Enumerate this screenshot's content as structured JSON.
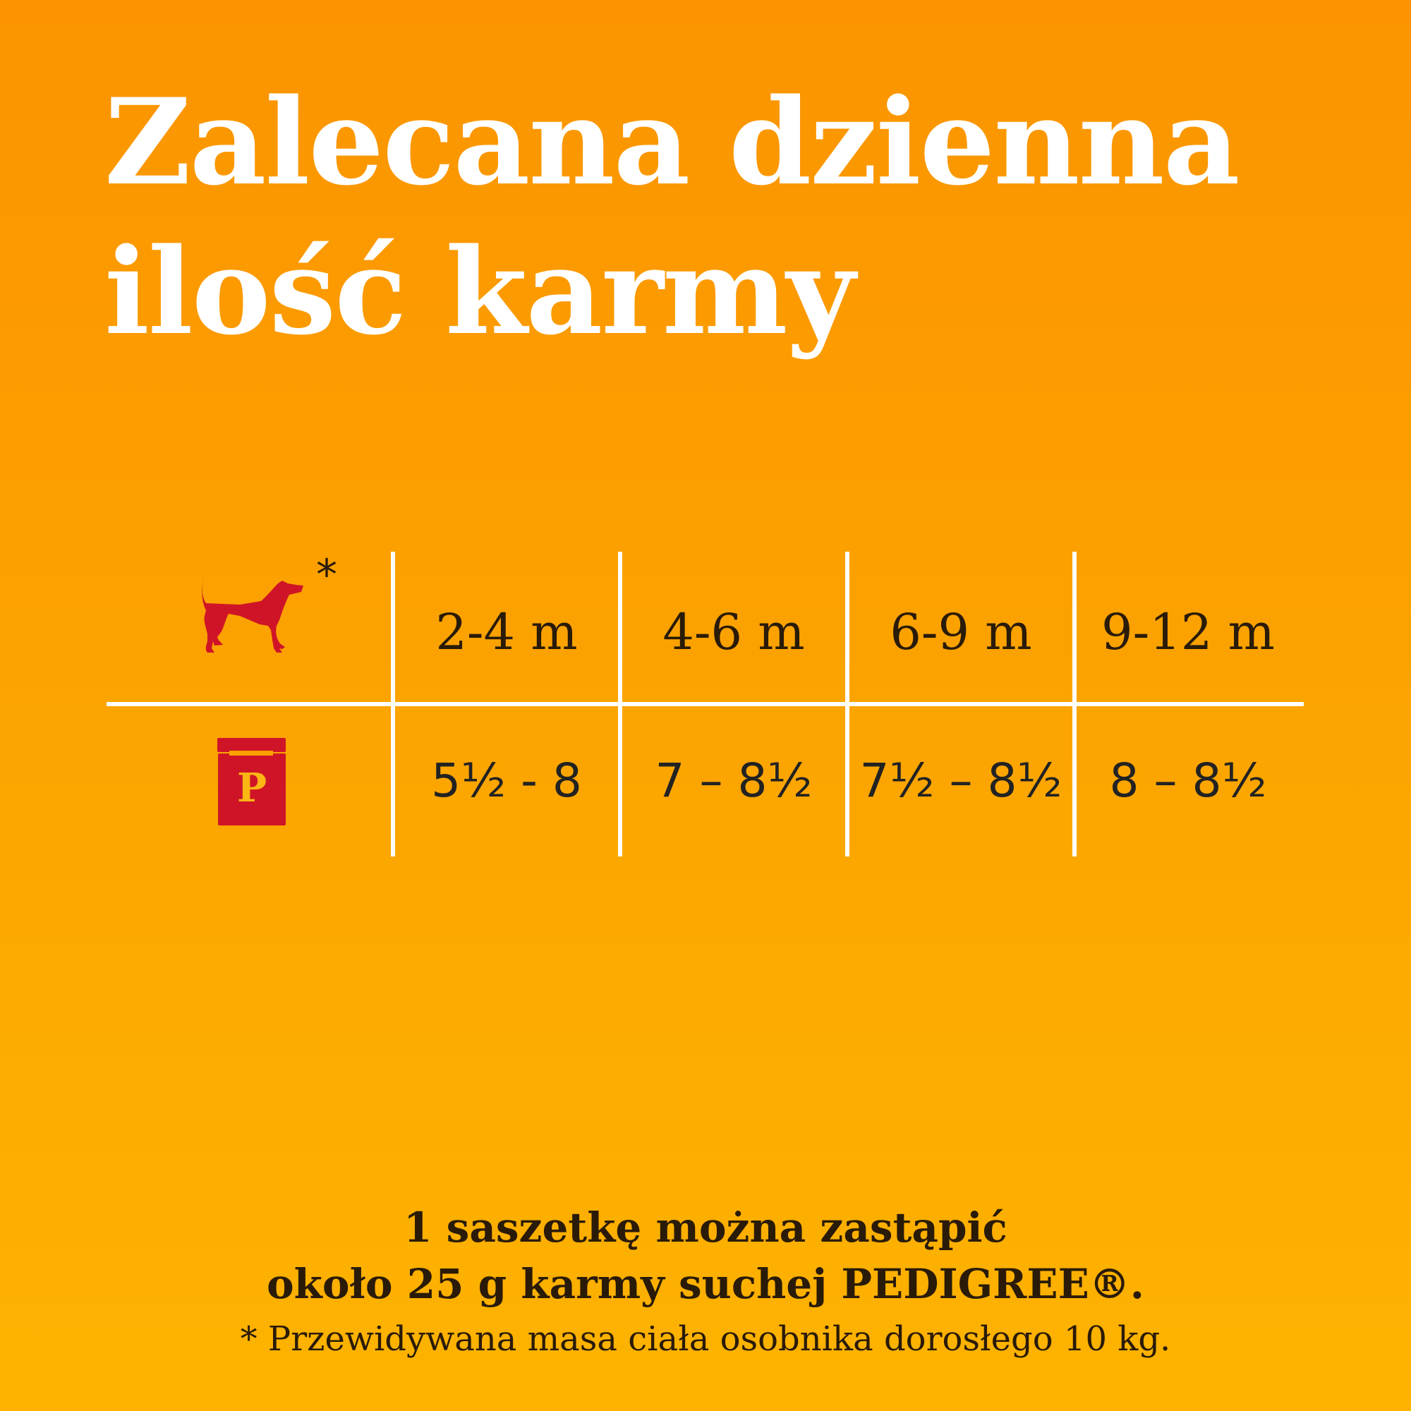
{
  "title": {
    "line1": "Zalecana dzienna",
    "line2": "ilość karmy"
  },
  "table": {
    "header_icon": "dog-icon",
    "asterisk": "*",
    "row_icon": "pedigree-pouch-icon",
    "pouch_letter": "P",
    "ages": [
      "2-4 m",
      "4-6 m",
      "6-9 m",
      "9-12 m"
    ],
    "pouches": [
      "5½ - 8",
      "7 – 8½",
      "7½ – 8½",
      "8 – 8½"
    ]
  },
  "footer": {
    "line1": "1 saszetkę można zastąpić",
    "line2": "około 25 g karmy suchej PEDIGREE®.",
    "note": "* Przewidywana masa ciała osobnika dorosłego 10 kg."
  },
  "colors": {
    "background_top": "#FB9400",
    "background_bottom": "#FDB300",
    "icon_red": "#D01427",
    "pouch_letter": "#FBB514",
    "text": "#2a1b08"
  }
}
